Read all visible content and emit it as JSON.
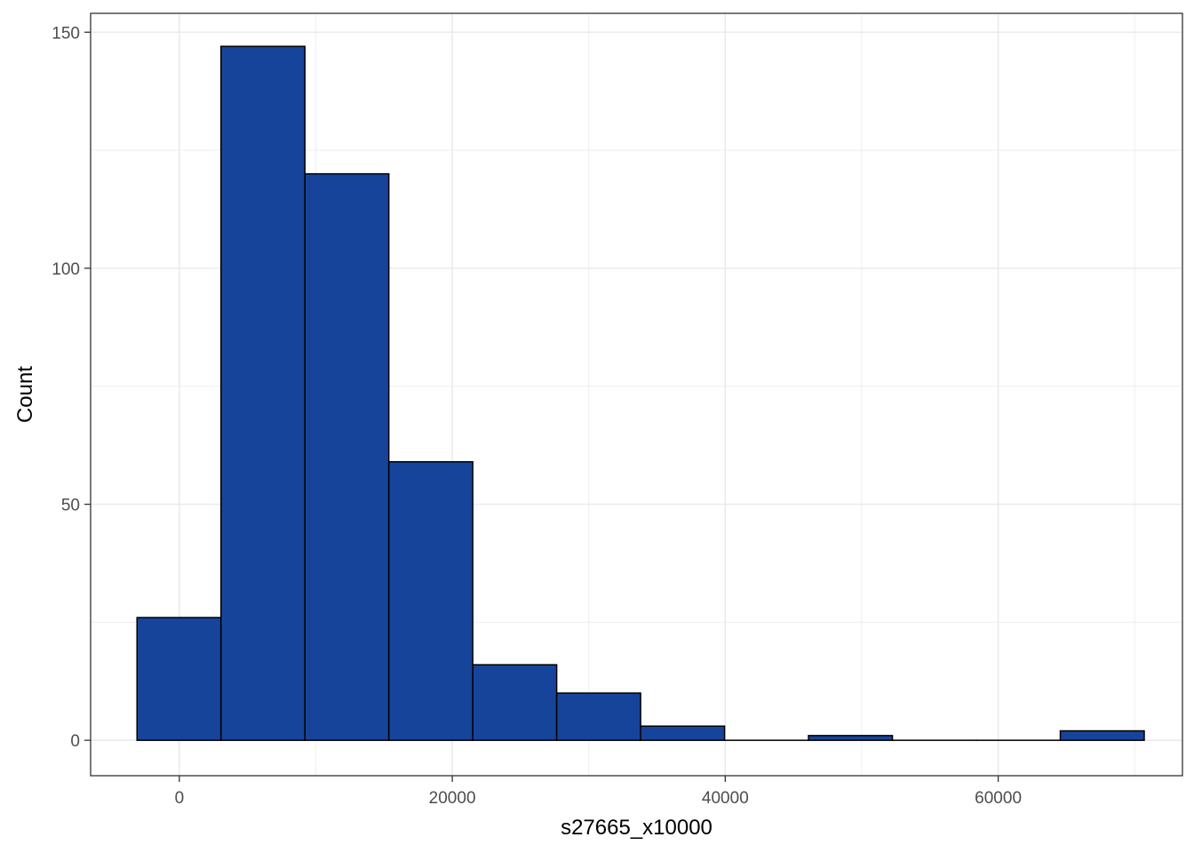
{
  "chart_data": {
    "type": "bar",
    "subtype": "histogram",
    "xlabel": "s27665_x10000",
    "ylabel": "Count",
    "xlim": [
      -6500,
      73500
    ],
    "ylim": [
      -7.5,
      154
    ],
    "x_ticks": [
      0,
      20000,
      40000,
      60000
    ],
    "x_tick_labels": [
      "0",
      "20000",
      "40000",
      "60000"
    ],
    "y_ticks": [
      0,
      50,
      100,
      150
    ],
    "y_tick_labels": [
      "0",
      "50",
      "100",
      "150"
    ],
    "grid": true,
    "bins": [
      {
        "x0": -3100,
        "x1": 3050,
        "count": 26
      },
      {
        "x0": 3050,
        "x1": 9200,
        "count": 147
      },
      {
        "x0": 9200,
        "x1": 15350,
        "count": 120
      },
      {
        "x0": 15350,
        "x1": 21500,
        "count": 59
      },
      {
        "x0": 21500,
        "x1": 27650,
        "count": 16
      },
      {
        "x0": 27650,
        "x1": 33800,
        "count": 10
      },
      {
        "x0": 33800,
        "x1": 39950,
        "count": 3
      },
      {
        "x0": 39950,
        "x1": 46100,
        "count": 0
      },
      {
        "x0": 46100,
        "x1": 52250,
        "count": 1
      },
      {
        "x0": 52250,
        "x1": 58400,
        "count": 0
      },
      {
        "x0": 58400,
        "x1": 64550,
        "count": 0
      },
      {
        "x0": 64550,
        "x1": 70700,
        "count": 2
      }
    ],
    "colors": {
      "fill": "#17449B",
      "outline": "#000000",
      "grid": "#EBEBEB",
      "panel_border": "#333333"
    }
  }
}
